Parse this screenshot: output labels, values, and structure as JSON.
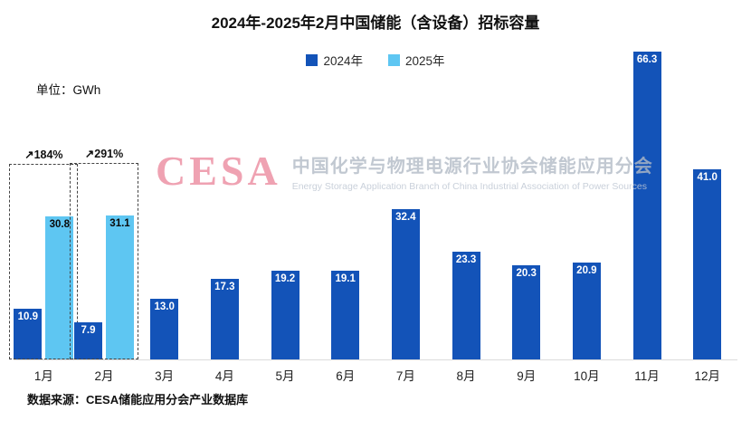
{
  "title": "2024年-2025年2月中国储能（含设备）招标容量",
  "unit_label": "单位：GWh",
  "legend": [
    {
      "label": "2024年",
      "color": "#1353b8"
    },
    {
      "label": "2025年",
      "color": "#5ec6f2"
    }
  ],
  "watermark": {
    "logo": "CESA",
    "cn": "中国化学与物理电源行业协会储能应用分会",
    "en": "Energy Storage Application Branch of China Industrial Association of Power Sources"
  },
  "source": "数据来源：CESA储能应用分会产业数据库",
  "chart_data": {
    "type": "bar",
    "categories": [
      "1月",
      "2月",
      "3月",
      "4月",
      "5月",
      "6月",
      "7月",
      "8月",
      "9月",
      "10月",
      "11月",
      "12月"
    ],
    "series": [
      {
        "name": "2024年",
        "color": "#1353b8",
        "label_color": "#ffffff",
        "values": [
          10.9,
          7.9,
          13.0,
          17.3,
          19.2,
          19.1,
          32.4,
          23.3,
          20.3,
          20.9,
          66.3,
          41.0
        ]
      },
      {
        "name": "2025年",
        "color": "#5ec6f2",
        "label_color": "#0a0a0a",
        "values": [
          30.8,
          31.1,
          null,
          null,
          null,
          null,
          null,
          null,
          null,
          null,
          null,
          null
        ]
      }
    ],
    "annotations": [
      {
        "category": "1月",
        "label": "↗184%"
      },
      {
        "category": "2月",
        "label": "↗291%"
      }
    ],
    "title": "2024年-2025年2月中国储能（含设备）招标容量",
    "xlabel": "",
    "ylabel": "GWh",
    "ylim": [
      0,
      70
    ],
    "grid": false,
    "legend_position": "top"
  }
}
